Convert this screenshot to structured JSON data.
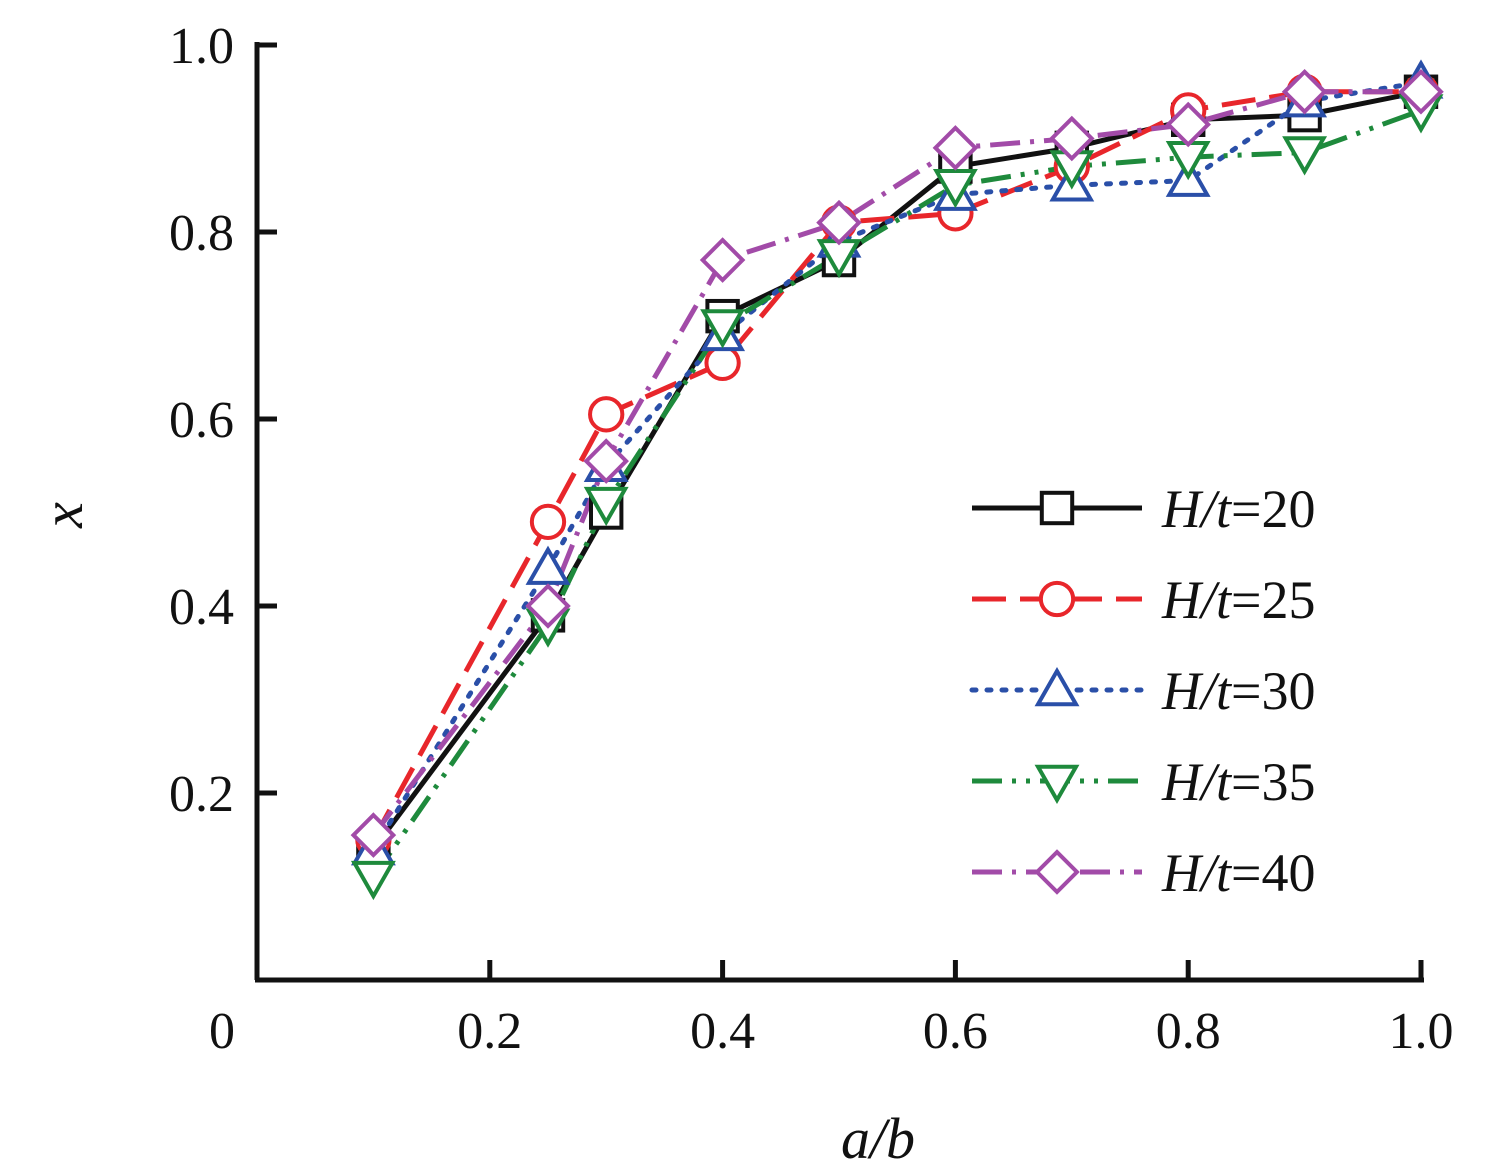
{
  "chart_data": {
    "type": "line",
    "xlabel": "a/b",
    "ylabel": "x",
    "xlim": [
      0,
      1.0
    ],
    "ylim": [
      0,
      1.0
    ],
    "x_tick_labels": [
      "0",
      "0.2",
      "0.4",
      "0.6",
      "0.8",
      "1.0"
    ],
    "x_tick_values": [
      0,
      0.2,
      0.4,
      0.6,
      0.8,
      1.0
    ],
    "y_tick_labels": [
      "0.2",
      "0.4",
      "0.6",
      "0.8",
      "1.0"
    ],
    "y_tick_values": [
      0.2,
      0.4,
      0.6,
      0.8,
      1.0
    ],
    "grid": false,
    "legend_position": "right",
    "series": [
      {
        "name": "H/t=20",
        "color": "#111111",
        "dash": "solid",
        "marker": "square",
        "x": [
          0.1,
          0.25,
          0.3,
          0.4,
          0.5,
          0.6,
          0.7,
          0.8,
          0.9,
          1.0
        ],
        "y": [
          0.14,
          0.39,
          0.5,
          0.71,
          0.77,
          0.87,
          0.89,
          0.92,
          0.925,
          0.95
        ]
      },
      {
        "name": "H/t=25",
        "color": "#e8262b",
        "dash": "dashed",
        "marker": "circle",
        "x": [
          0.1,
          0.25,
          0.3,
          0.4,
          0.5,
          0.6,
          0.7,
          0.8,
          0.9,
          1.0
        ],
        "y": [
          0.15,
          0.49,
          0.605,
          0.66,
          0.81,
          0.82,
          0.87,
          0.93,
          0.95,
          0.95
        ]
      },
      {
        "name": "H/t=30",
        "color": "#2a4fa8",
        "dash": "dotted",
        "marker": "triangle-up",
        "x": [
          0.1,
          0.25,
          0.3,
          0.4,
          0.5,
          0.6,
          0.7,
          0.8,
          0.9,
          1.0
        ],
        "y": [
          0.14,
          0.44,
          0.55,
          0.69,
          0.79,
          0.84,
          0.85,
          0.855,
          0.94,
          0.96
        ]
      },
      {
        "name": "H/t=35",
        "color": "#1e8a3c",
        "dash": "dash-dot-dot",
        "marker": "triangle-down",
        "x": [
          0.1,
          0.25,
          0.3,
          0.4,
          0.5,
          0.6,
          0.7,
          0.8,
          0.9,
          1.0
        ],
        "y": [
          0.11,
          0.38,
          0.51,
          0.7,
          0.775,
          0.85,
          0.87,
          0.88,
          0.885,
          0.93
        ]
      },
      {
        "name": "H/t=40",
        "color": "#a24ba8",
        "dash": "dash-dot",
        "marker": "diamond",
        "x": [
          0.1,
          0.25,
          0.3,
          0.4,
          0.5,
          0.6,
          0.7,
          0.8,
          0.9,
          1.0
        ],
        "y": [
          0.155,
          0.4,
          0.555,
          0.77,
          0.81,
          0.89,
          0.9,
          0.915,
          0.95,
          0.95
        ]
      }
    ]
  }
}
